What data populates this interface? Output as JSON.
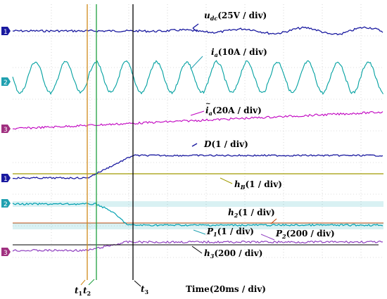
{
  "chart_data": {
    "type": "line",
    "xlabel": "Time(20ms / div)",
    "grid": true,
    "colors": {
      "udc": "#1a1aa0",
      "ia": "#00a0a0",
      "ia_env": "#c000c0",
      "D": "#1a1aa0",
      "hB": "#a09a00",
      "h2": "#c04000",
      "P1": "#00a0b0",
      "P2": "#9040c0",
      "h3": "#000000",
      "t1": "#d08a1a",
      "t2": "#20a040",
      "t3": "#000000",
      "ch1": "#1a1aa0",
      "ch2": "#20a0b0",
      "ch3": "#a03080"
    },
    "channels": [
      {
        "id": "ch1-top",
        "label": "1"
      },
      {
        "id": "ch2-top",
        "label": "2"
      },
      {
        "id": "ch3-top",
        "label": "3"
      },
      {
        "id": "ch1-bot",
        "label": "1"
      },
      {
        "id": "ch2-bot",
        "label": "2"
      },
      {
        "id": "ch3-bot",
        "label": "3"
      }
    ],
    "series": [
      {
        "key": "udc",
        "name": "u",
        "sub": "dc",
        "unit": "(25V / div)"
      },
      {
        "key": "ia",
        "name": "i",
        "sub": "a",
        "unit": "(10A / div)"
      },
      {
        "key": "ia_env",
        "name": "i",
        "sub": "a",
        "unit": "(20A / div)"
      },
      {
        "key": "D",
        "name": "D",
        "sub": "",
        "unit": "(1 / div)"
      },
      {
        "key": "hB",
        "name": "h",
        "sub": "B",
        "unit": "(1 / div)"
      },
      {
        "key": "h2",
        "name": "h",
        "sub": "2",
        "unit": "(1 / div)"
      },
      {
        "key": "P1",
        "name": "P",
        "sub": "1",
        "unit": "(1 / div)"
      },
      {
        "key": "P2",
        "name": "P",
        "sub": "2",
        "unit": "(200 / div)"
      },
      {
        "key": "h3",
        "name": "h",
        "sub": "3",
        "unit": "(200 / div)"
      }
    ],
    "markers": [
      {
        "key": "t1",
        "name": "t",
        "sub": "1"
      },
      {
        "key": "t2",
        "name": "t",
        "sub": "2"
      },
      {
        "key": "t3",
        "name": "t",
        "sub": "3"
      }
    ]
  }
}
